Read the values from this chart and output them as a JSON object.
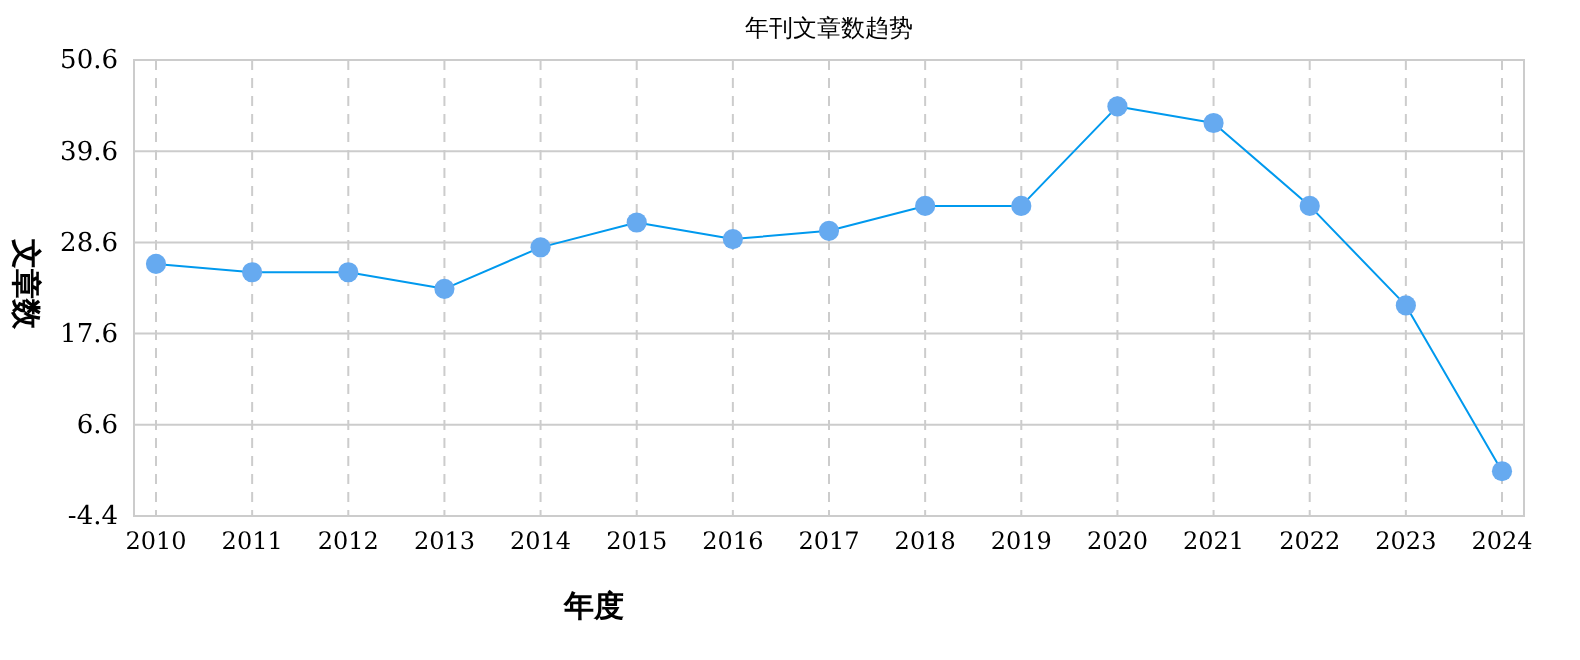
{
  "chart_data": {
    "type": "line",
    "title": "年刊文章数趋势",
    "xlabel": "年度",
    "ylabel": "文章数",
    "categories": [
      "2010",
      "2011",
      "2012",
      "2013",
      "2014",
      "2015",
      "2016",
      "2017",
      "2018",
      "2019",
      "2020",
      "2021",
      "2022",
      "2023",
      "2024"
    ],
    "series": [
      {
        "color": "#0099ee",
        "values": [
          26,
          25,
          25,
          23,
          28,
          31,
          29,
          30,
          33,
          33,
          45,
          43,
          33,
          21,
          1
        ]
      }
    ],
    "ylim": [
      -4.4,
      50.6
    ],
    "yticks": [
      {
        "value": -4.4,
        "label": "-4.4"
      },
      {
        "value": 6.6,
        "label": "6.6"
      },
      {
        "value": 17.6,
        "label": "17.6"
      },
      {
        "value": 28.6,
        "label": "28.6"
      },
      {
        "value": 39.6,
        "label": "39.6"
      },
      {
        "value": 50.6,
        "label": "50.6"
      }
    ],
    "grid": true,
    "marker": "circle",
    "line_style": "solid"
  }
}
